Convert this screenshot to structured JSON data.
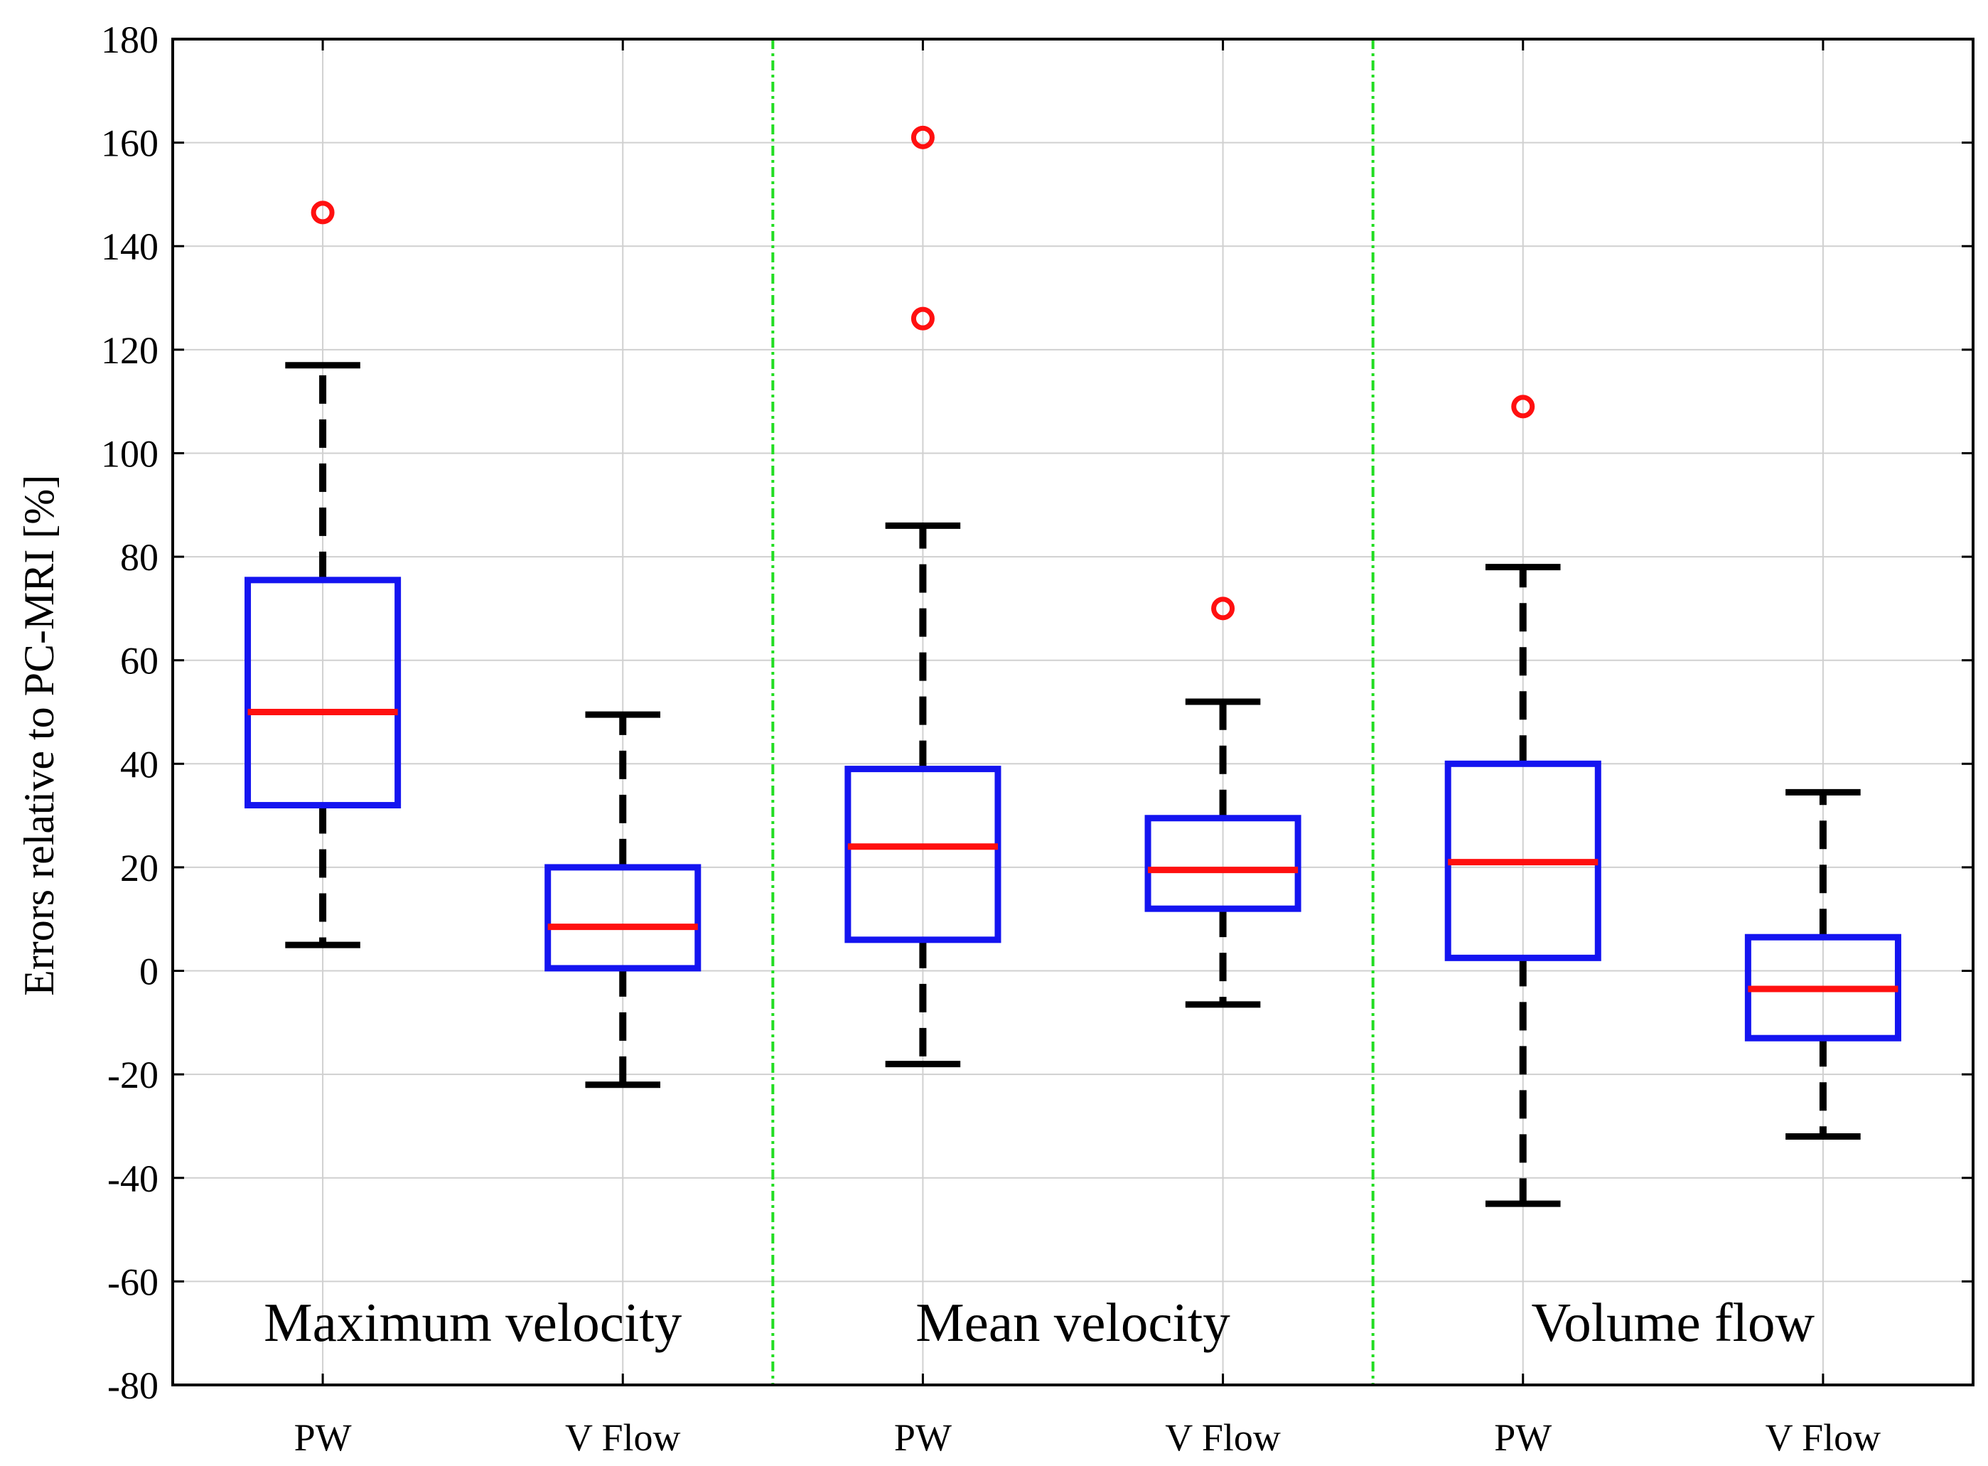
{
  "chart_data": {
    "type": "boxplot",
    "ylabel": "Errors relative to PC-MRI [%]",
    "ylim": [
      -80,
      180
    ],
    "yticks": [
      -80,
      -60,
      -40,
      -20,
      0,
      20,
      40,
      60,
      80,
      100,
      120,
      140,
      160,
      180
    ],
    "grid": true,
    "categories": [
      "PW",
      "V Flow",
      "PW",
      "V Flow",
      "PW",
      "V Flow"
    ],
    "groups": [
      {
        "label": "Maximum velocity",
        "boxes": [
          0,
          1
        ]
      },
      {
        "label": "Mean velocity",
        "boxes": [
          2,
          3
        ]
      },
      {
        "label": "Volume flow",
        "boxes": [
          4,
          5
        ]
      }
    ],
    "boxes": [
      {
        "name": "PW",
        "whisker_low": 5,
        "q1": 32,
        "median": 50,
        "q3": 75.5,
        "whisker_high": 117,
        "outliers": [
          146.5
        ]
      },
      {
        "name": "V Flow",
        "whisker_low": -22,
        "q1": 0.5,
        "median": 8.5,
        "q3": 20,
        "whisker_high": 49.5,
        "outliers": []
      },
      {
        "name": "PW",
        "whisker_low": -18,
        "q1": 6,
        "median": 24,
        "q3": 39,
        "whisker_high": 86,
        "outliers": [
          161,
          126
        ]
      },
      {
        "name": "V Flow",
        "whisker_low": -6.5,
        "q1": 12,
        "median": 19.5,
        "q3": 29.5,
        "whisker_high": 52,
        "outliers": [
          70
        ]
      },
      {
        "name": "PW",
        "whisker_low": -45,
        "q1": 2.5,
        "median": 21,
        "q3": 40,
        "whisker_high": 78,
        "outliers": [
          109
        ]
      },
      {
        "name": "V Flow",
        "whisker_low": -32,
        "q1": -13,
        "median": -3.5,
        "q3": 6.5,
        "whisker_high": 34.5,
        "outliers": []
      }
    ],
    "colors": {
      "box": "#1414f0",
      "median": "#ff1010",
      "whisker": "#000000",
      "outlier": "#ff1010",
      "separator": "#22dd22",
      "grid": "#d0d0d0"
    }
  }
}
